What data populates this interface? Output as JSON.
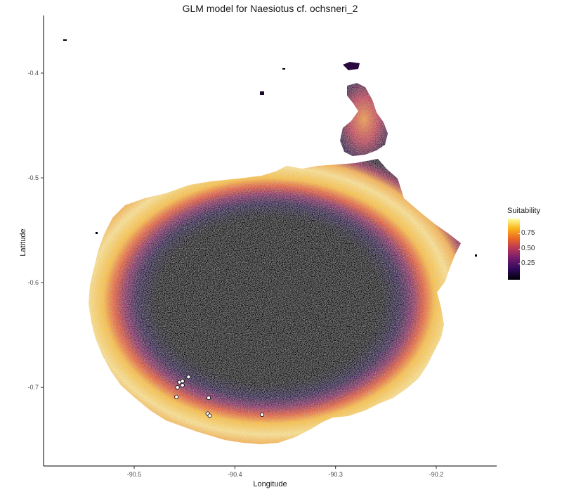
{
  "chart_data": {
    "type": "heatmap",
    "title": "GLM model for Naesiotus cf. ochsneri_2",
    "xlabel": "Longitude",
    "ylabel": "Latitude",
    "xlim": [
      -90.59,
      -90.14
    ],
    "ylim": [
      -0.775,
      -0.345
    ],
    "x_ticks": [
      -90.5,
      -90.4,
      -90.3,
      -90.2
    ],
    "x_tick_labels": [
      "-90.5",
      "-90.4",
      "-90.3",
      "-90.2"
    ],
    "y_ticks": [
      -0.4,
      -0.5,
      -0.6,
      -0.7
    ],
    "y_tick_labels": [
      "-0.4",
      "-0.5",
      "-0.6",
      "-0.7"
    ],
    "colorscale": "inferno",
    "colors": [
      "#000004",
      "#320a5e",
      "#781c6d",
      "#bc3754",
      "#ed6925",
      "#fbb61a",
      "#fcffa4"
    ],
    "legend": {
      "title": "Suitability",
      "position": "right",
      "range": [
        0,
        1
      ],
      "ticks": [
        0.25,
        0.5,
        0.75
      ],
      "tick_labels": [
        "0.25",
        "0.50",
        "0.75"
      ]
    },
    "grid": false,
    "occurrence_points": [
      {
        "x": -90.455,
        "y": -0.695
      },
      {
        "x": -90.452,
        "y": -0.698
      },
      {
        "x": -90.457,
        "y": -0.7
      },
      {
        "x": -90.452,
        "y": -0.694
      },
      {
        "x": -90.446,
        "y": -0.69
      },
      {
        "x": -90.458,
        "y": -0.709
      },
      {
        "x": -90.426,
        "y": -0.71
      },
      {
        "x": -90.427,
        "y": -0.725
      },
      {
        "x": -90.425,
        "y": -0.727
      },
      {
        "x": -90.373,
        "y": -0.726
      }
    ],
    "point_style": {
      "fill": "#ffffff",
      "stroke": "#000000"
    }
  }
}
